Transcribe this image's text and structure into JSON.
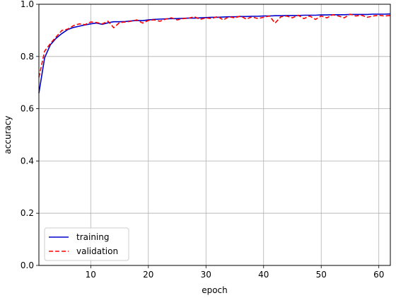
{
  "chart_data": {
    "type": "line",
    "title": "",
    "xlabel": "epoch",
    "ylabel": "accuracy",
    "xlim": [
      1,
      62
    ],
    "ylim": [
      0,
      1.0
    ],
    "xticks": [
      10,
      20,
      30,
      40,
      50,
      60
    ],
    "xtick_labels": [
      "10",
      "20",
      "30",
      "40",
      "50",
      "60"
    ],
    "yticks": [
      0.0,
      0.2,
      0.4,
      0.6,
      0.8,
      1.0
    ],
    "ytick_labels": [
      "0.0",
      "0.2",
      "0.4",
      "0.6",
      "0.8",
      "1.0"
    ],
    "grid": true,
    "legend_position": "lower-left",
    "x": [
      1,
      2,
      3,
      4,
      5,
      6,
      7,
      8,
      9,
      10,
      11,
      12,
      13,
      14,
      15,
      16,
      17,
      18,
      19,
      20,
      21,
      22,
      23,
      24,
      25,
      26,
      27,
      28,
      29,
      30,
      31,
      32,
      33,
      34,
      35,
      36,
      37,
      38,
      39,
      40,
      41,
      42,
      43,
      44,
      45,
      46,
      47,
      48,
      49,
      50,
      51,
      52,
      53,
      54,
      55,
      56,
      57,
      58,
      59,
      60,
      61,
      62
    ],
    "series": [
      {
        "name": "training",
        "color": "#0000cc",
        "style": "solid",
        "values": [
          0.66,
          0.795,
          0.845,
          0.87,
          0.888,
          0.903,
          0.911,
          0.916,
          0.921,
          0.925,
          0.928,
          0.923,
          0.929,
          0.933,
          0.933,
          0.934,
          0.936,
          0.938,
          0.937,
          0.94,
          0.942,
          0.943,
          0.944,
          0.945,
          0.945,
          0.946,
          0.947,
          0.947,
          0.948,
          0.949,
          0.95,
          0.95,
          0.951,
          0.952,
          0.952,
          0.953,
          0.953,
          0.954,
          0.954,
          0.955,
          0.955,
          0.956,
          0.956,
          0.957,
          0.957,
          0.957,
          0.958,
          0.958,
          0.958,
          0.959,
          0.959,
          0.96,
          0.96,
          0.96,
          0.961,
          0.961,
          0.961,
          0.961,
          0.962,
          0.962,
          0.962,
          0.963
        ]
      },
      {
        "name": "validation",
        "color": "#ff0000",
        "style": "dashed",
        "values": [
          0.72,
          0.82,
          0.85,
          0.875,
          0.9,
          0.905,
          0.918,
          0.925,
          0.922,
          0.932,
          0.93,
          0.925,
          0.935,
          0.91,
          0.93,
          0.932,
          0.935,
          0.94,
          0.928,
          0.938,
          0.94,
          0.935,
          0.943,
          0.948,
          0.94,
          0.945,
          0.947,
          0.952,
          0.942,
          0.948,
          0.945,
          0.953,
          0.94,
          0.952,
          0.948,
          0.955,
          0.943,
          0.952,
          0.945,
          0.95,
          0.955,
          0.928,
          0.952,
          0.955,
          0.948,
          0.958,
          0.945,
          0.955,
          0.942,
          0.955,
          0.948,
          0.96,
          0.955,
          0.948,
          0.962,
          0.955,
          0.958,
          0.95,
          0.955,
          0.958,
          0.955,
          0.957
        ]
      }
    ]
  }
}
